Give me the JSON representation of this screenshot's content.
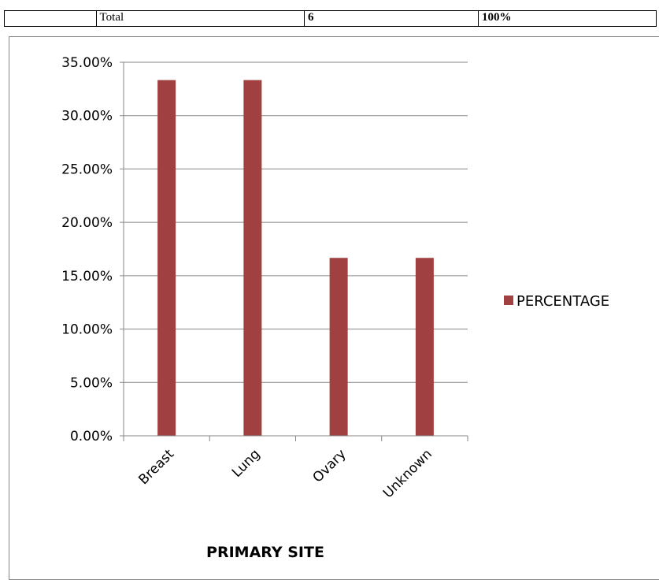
{
  "table": {
    "row": [
      {
        "text": "",
        "bold": false
      },
      {
        "text": "Total",
        "bold": false
      },
      {
        "text": "6",
        "bold": true
      },
      {
        "text": "100%",
        "bold": true
      }
    ]
  },
  "chart_data": {
    "type": "bar",
    "categories": [
      "Breast",
      "Lung",
      "Ovary",
      "Unknown"
    ],
    "series": [
      {
        "name": "PERCENTAGE",
        "values": [
          33.33,
          33.33,
          16.67,
          16.67
        ],
        "color": "#A04040"
      }
    ],
    "yticks": [
      "0.00%",
      "5.00%",
      "10.00%",
      "15.00%",
      "20.00%",
      "25.00%",
      "30.00%",
      "35.00%"
    ],
    "ylim": [
      0,
      35
    ],
    "xlabel": "PRIMARY SITE",
    "ylabel": "",
    "grid": true,
    "legend_position": "right"
  }
}
